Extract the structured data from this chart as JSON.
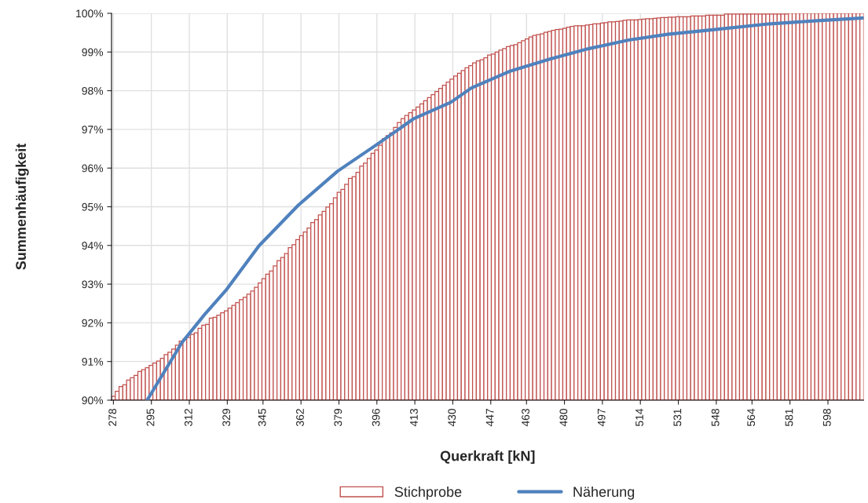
{
  "chart_data": {
    "type": "histogram",
    "xlabel": "Querkraft [kN]",
    "ylabel": "Summenhäufigkeit",
    "bins": [
      277.16,
      278.84,
      280.53,
      282.21,
      283.9,
      285.58,
      287.27,
      288.95,
      290.63,
      292.32,
      294.0,
      295.68,
      297.37,
      299.05,
      300.74,
      302.42,
      304.11,
      305.79,
      307.47,
      309.16,
      310.84,
      312.52,
      314.21,
      315.89,
      317.58,
      319.26,
      320.95,
      322.63,
      324.31,
      326.0,
      327.69,
      329.37,
      331.06,
      332.74,
      334.43,
      336.11,
      337.8,
      339.48,
      341.16,
      342.85,
      344.53,
      346.21,
      347.9,
      349.58,
      351.27,
      352.95,
      354.64,
      356.32,
      358.0,
      359.69,
      361.37,
      363.05,
      364.74,
      366.42,
      368.11,
      369.79,
      371.48,
      373.16,
      374.84,
      376.53,
      378.21,
      379.89,
      381.58,
      383.26,
      384.95,
      386.63,
      388.32,
      390.0,
      391.68,
      393.37,
      395.05,
      396.73,
      398.42,
      400.1,
      401.79,
      403.47,
      405.16,
      406.84,
      408.52,
      410.21,
      411.9,
      413.58,
      415.27,
      416.95,
      418.64,
      420.32,
      422.01,
      423.69,
      425.37,
      427.06,
      428.74,
      430.42,
      432.11,
      433.79,
      435.48,
      437.16,
      438.85,
      440.53,
      442.21,
      443.9,
      445.58,
      447.26,
      448.95,
      450.63,
      452.32,
      454.0,
      455.69,
      457.37,
      459.05,
      460.74,
      462.42,
      464.1,
      465.79,
      467.47,
      469.16,
      470.84,
      472.53,
      474.21,
      475.89,
      477.58,
      479.26,
      480.94,
      482.63,
      484.31,
      486.0,
      487.68,
      489.37,
      491.05,
      492.73,
      494.42,
      496.11,
      497.79,
      499.48,
      501.16,
      502.85,
      504.53,
      506.22,
      507.9,
      509.58,
      511.27,
      512.95,
      514.63,
      516.32,
      518.0,
      519.69,
      521.37,
      523.06,
      524.74,
      526.42,
      528.11,
      529.79,
      531.47,
      533.16,
      534.84,
      536.53,
      538.21,
      539.9,
      541.58,
      543.26,
      544.95,
      546.63,
      548.31,
      550.0,
      551.68,
      553.37,
      555.05,
      556.74,
      558.42,
      560.1,
      561.79,
      563.47,
      565.15,
      566.84,
      568.52,
      570.21,
      571.89,
      573.58,
      575.26,
      576.94,
      578.63,
      580.32,
      582.0,
      583.69,
      585.37,
      587.06,
      588.74,
      590.43,
      592.11,
      593.79,
      595.48,
      597.16,
      598.84,
      600.53,
      602.21,
      603.9,
      605.58,
      607.27,
      608.95,
      610.63,
      612.32,
      614.0
    ],
    "series": [
      {
        "name": "Stichprobe",
        "color": "#c0504d",
        "values": [
          90.1,
          90.23,
          90.35,
          90.4,
          90.52,
          90.58,
          90.64,
          90.74,
          90.79,
          90.84,
          90.9,
          90.96,
          91.01,
          91.08,
          91.18,
          91.24,
          91.32,
          91.42,
          91.53,
          91.58,
          91.62,
          91.7,
          91.74,
          91.86,
          91.94,
          91.96,
          92.12,
          92.14,
          92.2,
          92.26,
          92.31,
          92.38,
          92.45,
          92.52,
          92.6,
          92.66,
          92.74,
          92.82,
          92.92,
          93.03,
          93.14,
          93.26,
          93.34,
          93.47,
          93.61,
          93.69,
          93.79,
          93.94,
          94.02,
          94.15,
          94.25,
          94.35,
          94.45,
          94.59,
          94.67,
          94.79,
          94.88,
          94.99,
          95.08,
          95.23,
          95.37,
          95.45,
          95.58,
          95.73,
          95.78,
          95.89,
          96.05,
          96.13,
          96.25,
          96.38,
          96.47,
          96.59,
          96.76,
          96.84,
          96.91,
          97.05,
          97.18,
          97.28,
          97.36,
          97.43,
          97.5,
          97.58,
          97.66,
          97.74,
          97.82,
          97.9,
          97.98,
          98.06,
          98.14,
          98.22,
          98.3,
          98.38,
          98.45,
          98.52,
          98.59,
          98.65,
          98.72,
          98.77,
          98.8,
          98.85,
          98.92,
          98.95,
          99.0,
          99.05,
          99.09,
          99.14,
          99.17,
          99.19,
          99.24,
          99.29,
          99.34,
          99.39,
          99.43,
          99.45,
          99.47,
          99.51,
          99.53,
          99.56,
          99.58,
          99.59,
          99.61,
          99.64,
          99.66,
          99.68,
          99.68,
          99.68,
          99.7,
          99.71,
          99.73,
          99.73,
          99.75,
          99.76,
          99.78,
          99.78,
          99.79,
          99.8,
          99.82,
          99.83,
          99.83,
          99.83,
          99.84,
          99.85,
          99.86,
          99.86,
          99.87,
          99.88,
          99.89,
          99.89,
          99.9,
          99.9,
          99.91,
          99.91,
          99.91,
          99.91,
          99.93,
          99.93,
          99.93,
          99.93,
          99.95,
          99.95,
          99.95,
          99.95,
          99.95,
          99.98,
          99.98,
          99.98,
          99.98,
          99.98,
          99.98,
          99.98,
          99.98,
          99.98,
          99.98,
          99.98,
          99.98,
          99.98,
          99.98,
          99.98,
          99.98,
          99.98,
          100.0,
          100.0,
          100.0,
          100.0,
          100.0,
          100.0,
          100.0,
          100.0,
          100.0,
          100.0,
          100.0,
          100.0,
          100.0,
          100.0,
          100.0,
          100.0,
          100.0,
          100.0,
          100.0,
          100.0
        ]
      },
      {
        "name": "Näherung",
        "type": "line",
        "color": "#4f81bd",
        "x": [
          293.1,
          308.7,
          319.2,
          328.4,
          343.2,
          360.8,
          378.4,
          396.0,
          412.6,
          429.1,
          438.3,
          455.9,
          473.5,
          491.1,
          508.8,
          526.4,
          544.0,
          572.2,
          593.3,
          614.0
        ],
        "values": [
          90.0,
          91.49,
          92.24,
          92.84,
          93.99,
          95.04,
          95.92,
          96.61,
          97.28,
          97.7,
          98.07,
          98.51,
          98.82,
          99.09,
          99.31,
          99.46,
          99.56,
          99.73,
          99.81,
          99.88
        ]
      }
    ],
    "xlim": [
      277.16,
      614.0
    ],
    "xticks": [
      278,
      295,
      312,
      329,
      345,
      362,
      379,
      396,
      413,
      430,
      447,
      463,
      480,
      497,
      514,
      531,
      548,
      564,
      581,
      598
    ],
    "ylim": [
      90,
      100
    ],
    "yticks": [
      {
        "value": 90,
        "label": "90%"
      },
      {
        "value": 91,
        "label": "91%"
      },
      {
        "value": 92,
        "label": "92%"
      },
      {
        "value": 93,
        "label": "93%"
      },
      {
        "value": 94,
        "label": "94%"
      },
      {
        "value": 95,
        "label": "95%"
      },
      {
        "value": 96,
        "label": "96%"
      },
      {
        "value": 97,
        "label": "97%"
      },
      {
        "value": 98,
        "label": "98%"
      },
      {
        "value": 99,
        "label": "99%"
      },
      {
        "value": 100,
        "label": "100%"
      }
    ],
    "grid": true,
    "legend": "bottom"
  }
}
